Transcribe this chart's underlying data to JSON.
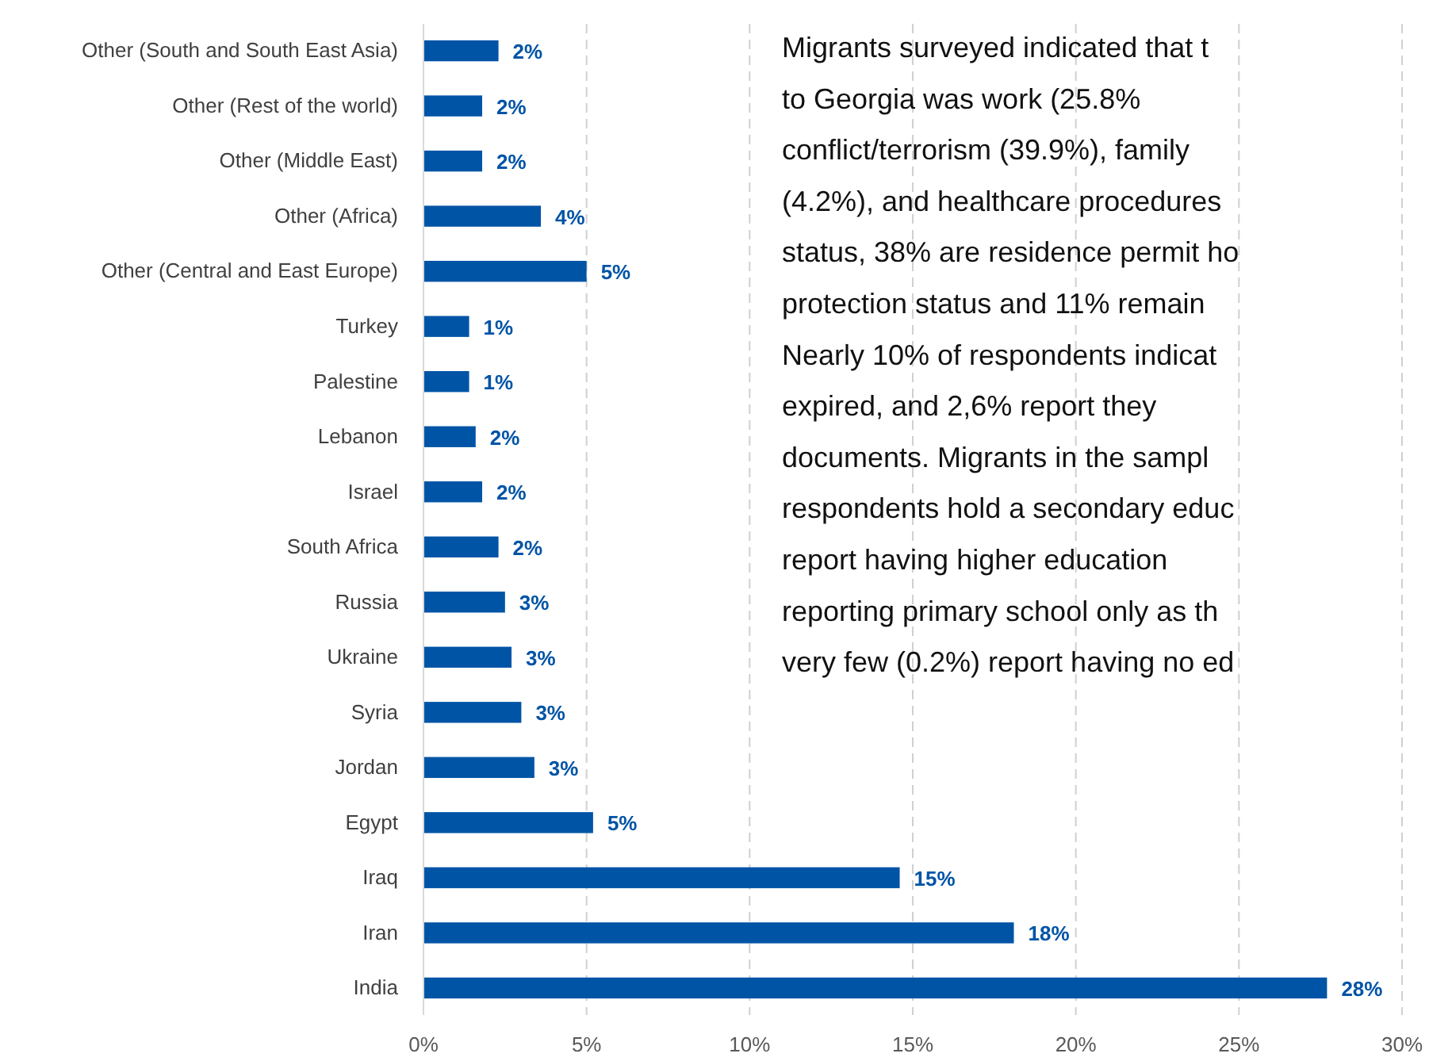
{
  "chart_data": {
    "type": "bar",
    "orientation": "horizontal",
    "categories": [
      "Other (South and South East Asia)",
      "Other (Rest of the world)",
      "Other (Middle East)",
      "Other (Africa)",
      "Other (Central and East Europe)",
      "Turkey",
      "Palestine",
      "Lebanon",
      "Israel",
      "South Africa",
      "Russia",
      "Ukraine",
      "Syria",
      "Jordan",
      "Egypt",
      "Iraq",
      "Iran",
      "India"
    ],
    "values": [
      2.3,
      1.8,
      1.8,
      3.6,
      5.0,
      1.4,
      1.4,
      1.6,
      1.8,
      2.3,
      2.5,
      2.7,
      3.0,
      3.4,
      5.2,
      14.6,
      18.1,
      27.7
    ],
    "value_labels": [
      "2%",
      "2%",
      "2%",
      "4%",
      "5%",
      "1%",
      "1%",
      "2%",
      "2%",
      "2%",
      "3%",
      "3%",
      "3%",
      "3%",
      "5%",
      "15%",
      "18%",
      "28%"
    ],
    "color": "#0054a6",
    "xlim": [
      0,
      30
    ],
    "xticks": [
      {
        "value": 0,
        "label": "0%"
      },
      {
        "value": 5,
        "label": "5%"
      },
      {
        "value": 10,
        "label": "10%"
      },
      {
        "value": 15,
        "label": "15%"
      },
      {
        "value": 20,
        "label": "20%"
      },
      {
        "value": 25,
        "label": "25%"
      },
      {
        "value": 30,
        "label": "30%"
      }
    ],
    "grid": "x",
    "annotations": [
      "Migrants surveyed indicated that t",
      "to Georgia was work (25.8%",
      "conflict/terrorism (39.9%), family",
      "(4.2%), and healthcare procedures",
      "status, 38% are residence permit ho",
      "protection status and 11% remain",
      "Nearly 10% of respondents indicat",
      "expired, and 2,6% report they",
      "documents. Migrants in the sampl",
      "respondents hold a secondary educ",
      "report having higher education",
      "reporting primary school only as th",
      "very few (0.2%) report having no ed"
    ]
  }
}
